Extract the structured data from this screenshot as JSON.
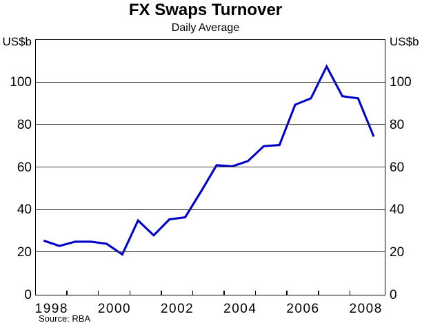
{
  "title": "FX Swaps Turnover",
  "subtitle": "Daily Average",
  "source": "Source: RBA",
  "axes": {
    "unit_left": "US$b",
    "unit_right": "US$b"
  },
  "colors": {
    "line": "#0000CC",
    "grid": "#3C3C3C",
    "frame": "#000000",
    "text": "#000000",
    "background": "#FFFFFF"
  },
  "chart_data": {
    "type": "line",
    "title": "FX Swaps Turnover",
    "subtitle": "Daily Average",
    "ylabel": "US$b",
    "y_axis_labels_on_both_sides": true,
    "grid": "horizontal",
    "legend": "none",
    "xlim": [
      1998,
      2009.1
    ],
    "ylim": [
      0,
      120
    ],
    "yticks": [
      0,
      20,
      40,
      60,
      80,
      100
    ],
    "x_minor_ticks": [
      1999,
      2000,
      2001,
      2002,
      2003,
      2004,
      2005,
      2006,
      2007,
      2008
    ],
    "x_labels": [
      {
        "text": "1998",
        "x": 1998.5
      },
      {
        "text": "2000",
        "x": 2000.5
      },
      {
        "text": "2002",
        "x": 2002.5
      },
      {
        "text": "2004",
        "x": 2004.5
      },
      {
        "text": "2006",
        "x": 2006.5
      },
      {
        "text": "2008",
        "x": 2008.5
      }
    ],
    "series": [
      {
        "name": "FX Swaps Turnover",
        "periods": [
          "1998 H1",
          "1998 H2",
          "1999 H1",
          "1999 H2",
          "2000 H1",
          "2000 H2",
          "2001 H1",
          "2001 H2",
          "2002 H1",
          "2002 H2",
          "2003 H1",
          "2003 H2",
          "2004 H1",
          "2004 H2",
          "2005 H1",
          "2005 H2",
          "2006 H1",
          "2006 H2",
          "2007 H1",
          "2007 H2",
          "2008 H1",
          "2008 H2"
        ],
        "x": [
          1998.25,
          1998.75,
          1999.25,
          1999.75,
          2000.25,
          2000.75,
          2001.25,
          2001.75,
          2002.25,
          2002.75,
          2003.25,
          2003.75,
          2004.25,
          2004.75,
          2005.25,
          2005.75,
          2006.25,
          2006.75,
          2007.25,
          2007.75,
          2008.25,
          2008.75
        ],
        "values": [
          25.5,
          23,
          25,
          25,
          24,
          19,
          35,
          28,
          35.5,
          36.5,
          48.5,
          61,
          60.5,
          63,
          70,
          70.5,
          89.5,
          92.5,
          107.5,
          93.5,
          92.5,
          74.5
        ]
      }
    ],
    "source": "Source: RBA"
  }
}
